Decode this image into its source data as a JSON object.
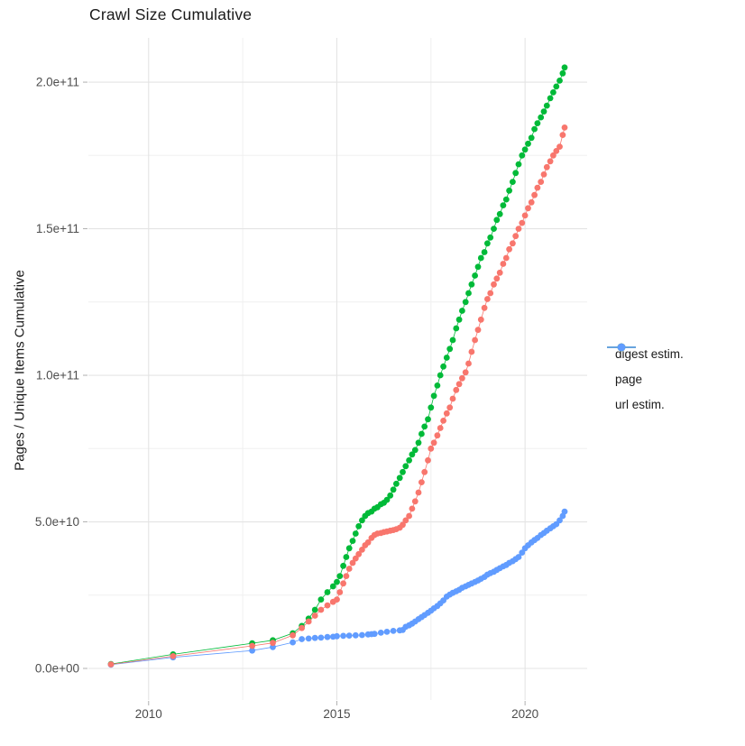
{
  "chart_data": {
    "type": "scatter",
    "title": "Crawl Size Cumulative",
    "xlabel": "",
    "ylabel": "Pages / Unique Items Cumulative",
    "legend_position": "right",
    "grid": true,
    "background": "#ffffff",
    "grid_major_color": "#e4e4e4",
    "grid_minor_color": "#f0f0f0",
    "tick_color": "#b0b0b0",
    "tick_label_color": "#4d4d4d",
    "x_range": [
      2008.4,
      2021.65
    ],
    "y_range": [
      -10770000000.0,
      215100000000.0
    ],
    "x_ticks": [
      {
        "v": 2010,
        "label": "2010"
      },
      {
        "v": 2015,
        "label": "2015"
      },
      {
        "v": 2020,
        "label": "2020"
      }
    ],
    "x_minor": [
      2012.5,
      2017.5
    ],
    "y_ticks": [
      {
        "v": 0,
        "label": "0.0e+00"
      },
      {
        "v": 50000000000.0,
        "label": "5.0e+10"
      },
      {
        "v": 100000000000.0,
        "label": "1.0e+11"
      },
      {
        "v": 150000000000.0,
        "label": "1.5e+11"
      },
      {
        "v": 200000000000.0,
        "label": "2.0e+11"
      }
    ],
    "y_minor": [
      25000000000.0,
      75000000000.0,
      125000000000.0,
      175000000000.0
    ],
    "draw_order": [
      1,
      2,
      0
    ],
    "series": [
      {
        "name": "digest estim.",
        "color": "#F8766D",
        "points": [
          [
            2009.0,
            1400000000.0
          ],
          [
            2010.65,
            4200000000.0
          ],
          [
            2012.75,
            7700000000.0
          ],
          [
            2013.3,
            8700000000.0
          ],
          [
            2013.83,
            11300000000.0
          ],
          [
            2014.07,
            13800000000.0
          ],
          [
            2014.25,
            16000000000.0
          ],
          [
            2014.42,
            18000000000.0
          ],
          [
            2014.58,
            20000000000.0
          ],
          [
            2014.75,
            21500000000.0
          ],
          [
            2014.9,
            22700000000.0
          ],
          [
            2015.0,
            23500000000.0
          ],
          [
            2015.08,
            26000000000.0
          ],
          [
            2015.17,
            29000000000.0
          ],
          [
            2015.25,
            31500000000.0
          ],
          [
            2015.33,
            34000000000.0
          ],
          [
            2015.42,
            36000000000.0
          ],
          [
            2015.5,
            37500000000.0
          ],
          [
            2015.58,
            39000000000.0
          ],
          [
            2015.67,
            40500000000.0
          ],
          [
            2015.75,
            42000000000.0
          ],
          [
            2015.83,
            43000000000.0
          ],
          [
            2015.92,
            44500000000.0
          ],
          [
            2016.0,
            45500000000.0
          ],
          [
            2016.08,
            46000000000.0
          ],
          [
            2016.17,
            46200000000.0
          ],
          [
            2016.25,
            46500000000.0
          ],
          [
            2016.33,
            46700000000.0
          ],
          [
            2016.42,
            47000000000.0
          ],
          [
            2016.5,
            47200000000.0
          ],
          [
            2016.58,
            47500000000.0
          ],
          [
            2016.67,
            48000000000.0
          ],
          [
            2016.75,
            49000000000.0
          ],
          [
            2016.83,
            50500000000.0
          ],
          [
            2016.92,
            52000000000.0
          ],
          [
            2017.0,
            54500000000.0
          ],
          [
            2017.08,
            57000000000.0
          ],
          [
            2017.17,
            60000000000.0
          ],
          [
            2017.25,
            63500000000.0
          ],
          [
            2017.33,
            67000000000.0
          ],
          [
            2017.42,
            71000000000.0
          ],
          [
            2017.5,
            75000000000.0
          ],
          [
            2017.58,
            77000000000.0
          ],
          [
            2017.67,
            79500000000.0
          ],
          [
            2017.75,
            82000000000.0
          ],
          [
            2017.83,
            84500000000.0
          ],
          [
            2017.92,
            87000000000.0
          ],
          [
            2018.0,
            89000000000.0
          ],
          [
            2018.08,
            92000000000.0
          ],
          [
            2018.17,
            95000000000.0
          ],
          [
            2018.25,
            97000000000.0
          ],
          [
            2018.33,
            99000000000.0
          ],
          [
            2018.42,
            101000000000.0
          ],
          [
            2018.5,
            104000000000.0
          ],
          [
            2018.58,
            108000000000.0
          ],
          [
            2018.67,
            112000000000.0
          ],
          [
            2018.75,
            115500000000.0
          ],
          [
            2018.83,
            119000000000.0
          ],
          [
            2018.92,
            123000000000.0
          ],
          [
            2019.0,
            126000000000.0
          ],
          [
            2019.08,
            128000000000.0
          ],
          [
            2019.17,
            131000000000.0
          ],
          [
            2019.25,
            133000000000.0
          ],
          [
            2019.33,
            135000000000.0
          ],
          [
            2019.42,
            138000000000.0
          ],
          [
            2019.5,
            140000000000.0
          ],
          [
            2019.58,
            143000000000.0
          ],
          [
            2019.67,
            145000000000.0
          ],
          [
            2019.75,
            147500000000.0
          ],
          [
            2019.83,
            150000000000.0
          ],
          [
            2019.92,
            152000000000.0
          ],
          [
            2020.0,
            154500000000.0
          ],
          [
            2020.08,
            157000000000.0
          ],
          [
            2020.17,
            159000000000.0
          ],
          [
            2020.25,
            161500000000.0
          ],
          [
            2020.33,
            164000000000.0
          ],
          [
            2020.42,
            166000000000.0
          ],
          [
            2020.5,
            168500000000.0
          ],
          [
            2020.58,
            171000000000.0
          ],
          [
            2020.67,
            173000000000.0
          ],
          [
            2020.75,
            175000000000.0
          ],
          [
            2020.83,
            176500000000.0
          ],
          [
            2020.92,
            178000000000.0
          ],
          [
            2021.0,
            182000000000.0
          ],
          [
            2021.05,
            184500000000.0
          ]
        ]
      },
      {
        "name": "page",
        "color": "#00BA38",
        "points": [
          [
            2009.0,
            1500000000.0
          ],
          [
            2010.65,
            4800000000.0
          ],
          [
            2012.75,
            8600000000.0
          ],
          [
            2013.3,
            9600000000.0
          ],
          [
            2013.83,
            12000000000.0
          ],
          [
            2014.07,
            14500000000.0
          ],
          [
            2014.25,
            17000000000.0
          ],
          [
            2014.42,
            20000000000.0
          ],
          [
            2014.58,
            23500000000.0
          ],
          [
            2014.75,
            26000000000.0
          ],
          [
            2014.9,
            28000000000.0
          ],
          [
            2015.0,
            29500000000.0
          ],
          [
            2015.08,
            31500000000.0
          ],
          [
            2015.17,
            35000000000.0
          ],
          [
            2015.25,
            38000000000.0
          ],
          [
            2015.33,
            41000000000.0
          ],
          [
            2015.42,
            43500000000.0
          ],
          [
            2015.5,
            46000000000.0
          ],
          [
            2015.58,
            48500000000.0
          ],
          [
            2015.67,
            50500000000.0
          ],
          [
            2015.75,
            52000000000.0
          ],
          [
            2015.83,
            53000000000.0
          ],
          [
            2015.92,
            53500000000.0
          ],
          [
            2016.0,
            54500000000.0
          ],
          [
            2016.08,
            55000000000.0
          ],
          [
            2016.17,
            56000000000.0
          ],
          [
            2016.25,
            56500000000.0
          ],
          [
            2016.33,
            57500000000.0
          ],
          [
            2016.42,
            59000000000.0
          ],
          [
            2016.5,
            61000000000.0
          ],
          [
            2016.58,
            63000000000.0
          ],
          [
            2016.67,
            65000000000.0
          ],
          [
            2016.75,
            67000000000.0
          ],
          [
            2016.83,
            69000000000.0
          ],
          [
            2016.92,
            71000000000.0
          ],
          [
            2017.0,
            73000000000.0
          ],
          [
            2017.08,
            74500000000.0
          ],
          [
            2017.17,
            77000000000.0
          ],
          [
            2017.25,
            80000000000.0
          ],
          [
            2017.33,
            82500000000.0
          ],
          [
            2017.42,
            85000000000.0
          ],
          [
            2017.5,
            89000000000.0
          ],
          [
            2017.58,
            93000000000.0
          ],
          [
            2017.67,
            96500000000.0
          ],
          [
            2017.75,
            100000000000.0
          ],
          [
            2017.83,
            103000000000.0
          ],
          [
            2017.92,
            106000000000.0
          ],
          [
            2018.0,
            109000000000.0
          ],
          [
            2018.08,
            112000000000.0
          ],
          [
            2018.17,
            116000000000.0
          ],
          [
            2018.25,
            119000000000.0
          ],
          [
            2018.33,
            122000000000.0
          ],
          [
            2018.42,
            125000000000.0
          ],
          [
            2018.5,
            128000000000.0
          ],
          [
            2018.58,
            131000000000.0
          ],
          [
            2018.67,
            134000000000.0
          ],
          [
            2018.75,
            137000000000.0
          ],
          [
            2018.83,
            140000000000.0
          ],
          [
            2018.92,
            142000000000.0
          ],
          [
            2019.0,
            145000000000.0
          ],
          [
            2019.08,
            147000000000.0
          ],
          [
            2019.17,
            150000000000.0
          ],
          [
            2019.25,
            153000000000.0
          ],
          [
            2019.33,
            155000000000.0
          ],
          [
            2019.42,
            158000000000.0
          ],
          [
            2019.5,
            160000000000.0
          ],
          [
            2019.58,
            163000000000.0
          ],
          [
            2019.67,
            166000000000.0
          ],
          [
            2019.75,
            169000000000.0
          ],
          [
            2019.83,
            172000000000.0
          ],
          [
            2019.92,
            175000000000.0
          ],
          [
            2020.0,
            177000000000.0
          ],
          [
            2020.08,
            179000000000.0
          ],
          [
            2020.17,
            181000000000.0
          ],
          [
            2020.25,
            184000000000.0
          ],
          [
            2020.33,
            186000000000.0
          ],
          [
            2020.42,
            188000000000.0
          ],
          [
            2020.5,
            190000000000.0
          ],
          [
            2020.58,
            192000000000.0
          ],
          [
            2020.67,
            194500000000.0
          ],
          [
            2020.75,
            196500000000.0
          ],
          [
            2020.83,
            198500000000.0
          ],
          [
            2020.92,
            200500000000.0
          ],
          [
            2021.0,
            203000000000.0
          ],
          [
            2021.05,
            205000000000.0
          ]
        ]
      },
      {
        "name": "url estim.",
        "color": "#619CFF",
        "points": [
          [
            2009.0,
            1300000000.0
          ],
          [
            2010.65,
            3800000000.0
          ],
          [
            2012.75,
            6100000000.0
          ],
          [
            2013.3,
            7300000000.0
          ],
          [
            2013.83,
            8900000000.0
          ],
          [
            2014.07,
            10000000000.0
          ],
          [
            2014.25,
            10200000000.0
          ],
          [
            2014.42,
            10400000000.0
          ],
          [
            2014.58,
            10500000000.0
          ],
          [
            2014.75,
            10700000000.0
          ],
          [
            2014.9,
            10800000000.0
          ],
          [
            2015.0,
            11000000000.0
          ],
          [
            2015.17,
            11100000000.0
          ],
          [
            2015.33,
            11200000000.0
          ],
          [
            2015.5,
            11300000000.0
          ],
          [
            2015.67,
            11400000000.0
          ],
          [
            2015.83,
            11600000000.0
          ],
          [
            2015.92,
            11700000000.0
          ],
          [
            2016.0,
            11800000000.0
          ],
          [
            2016.17,
            12200000000.0
          ],
          [
            2016.33,
            12500000000.0
          ],
          [
            2016.5,
            12800000000.0
          ],
          [
            2016.67,
            13000000000.0
          ],
          [
            2016.75,
            13100000000.0
          ],
          [
            2016.83,
            14200000000.0
          ],
          [
            2016.92,
            14700000000.0
          ],
          [
            2017.0,
            15300000000.0
          ],
          [
            2017.08,
            16000000000.0
          ],
          [
            2017.17,
            16800000000.0
          ],
          [
            2017.25,
            17500000000.0
          ],
          [
            2017.33,
            18200000000.0
          ],
          [
            2017.42,
            19000000000.0
          ],
          [
            2017.5,
            19700000000.0
          ],
          [
            2017.58,
            20500000000.0
          ],
          [
            2017.67,
            21300000000.0
          ],
          [
            2017.75,
            22200000000.0
          ],
          [
            2017.83,
            23200000000.0
          ],
          [
            2017.92,
            24500000000.0
          ],
          [
            2018.0,
            25200000000.0
          ],
          [
            2018.08,
            25800000000.0
          ],
          [
            2018.17,
            26300000000.0
          ],
          [
            2018.25,
            26800000000.0
          ],
          [
            2018.33,
            27500000000.0
          ],
          [
            2018.42,
            28000000000.0
          ],
          [
            2018.5,
            28500000000.0
          ],
          [
            2018.58,
            29000000000.0
          ],
          [
            2018.67,
            29500000000.0
          ],
          [
            2018.75,
            30000000000.0
          ],
          [
            2018.83,
            30600000000.0
          ],
          [
            2018.92,
            31200000000.0
          ],
          [
            2019.0,
            32000000000.0
          ],
          [
            2019.08,
            32500000000.0
          ],
          [
            2019.17,
            33000000000.0
          ],
          [
            2019.25,
            33600000000.0
          ],
          [
            2019.33,
            34200000000.0
          ],
          [
            2019.42,
            34800000000.0
          ],
          [
            2019.5,
            35300000000.0
          ],
          [
            2019.58,
            36000000000.0
          ],
          [
            2019.67,
            36600000000.0
          ],
          [
            2019.75,
            37300000000.0
          ],
          [
            2019.83,
            38000000000.0
          ],
          [
            2019.92,
            39500000000.0
          ],
          [
            2020.0,
            41000000000.0
          ],
          [
            2020.08,
            42000000000.0
          ],
          [
            2020.17,
            43000000000.0
          ],
          [
            2020.25,
            43800000000.0
          ],
          [
            2020.33,
            44500000000.0
          ],
          [
            2020.42,
            45500000000.0
          ],
          [
            2020.5,
            46200000000.0
          ],
          [
            2020.58,
            47000000000.0
          ],
          [
            2020.67,
            47800000000.0
          ],
          [
            2020.75,
            48500000000.0
          ],
          [
            2020.83,
            49200000000.0
          ],
          [
            2020.92,
            50500000000.0
          ],
          [
            2021.0,
            52000000000.0
          ],
          [
            2021.05,
            53500000000.0
          ]
        ]
      }
    ]
  }
}
